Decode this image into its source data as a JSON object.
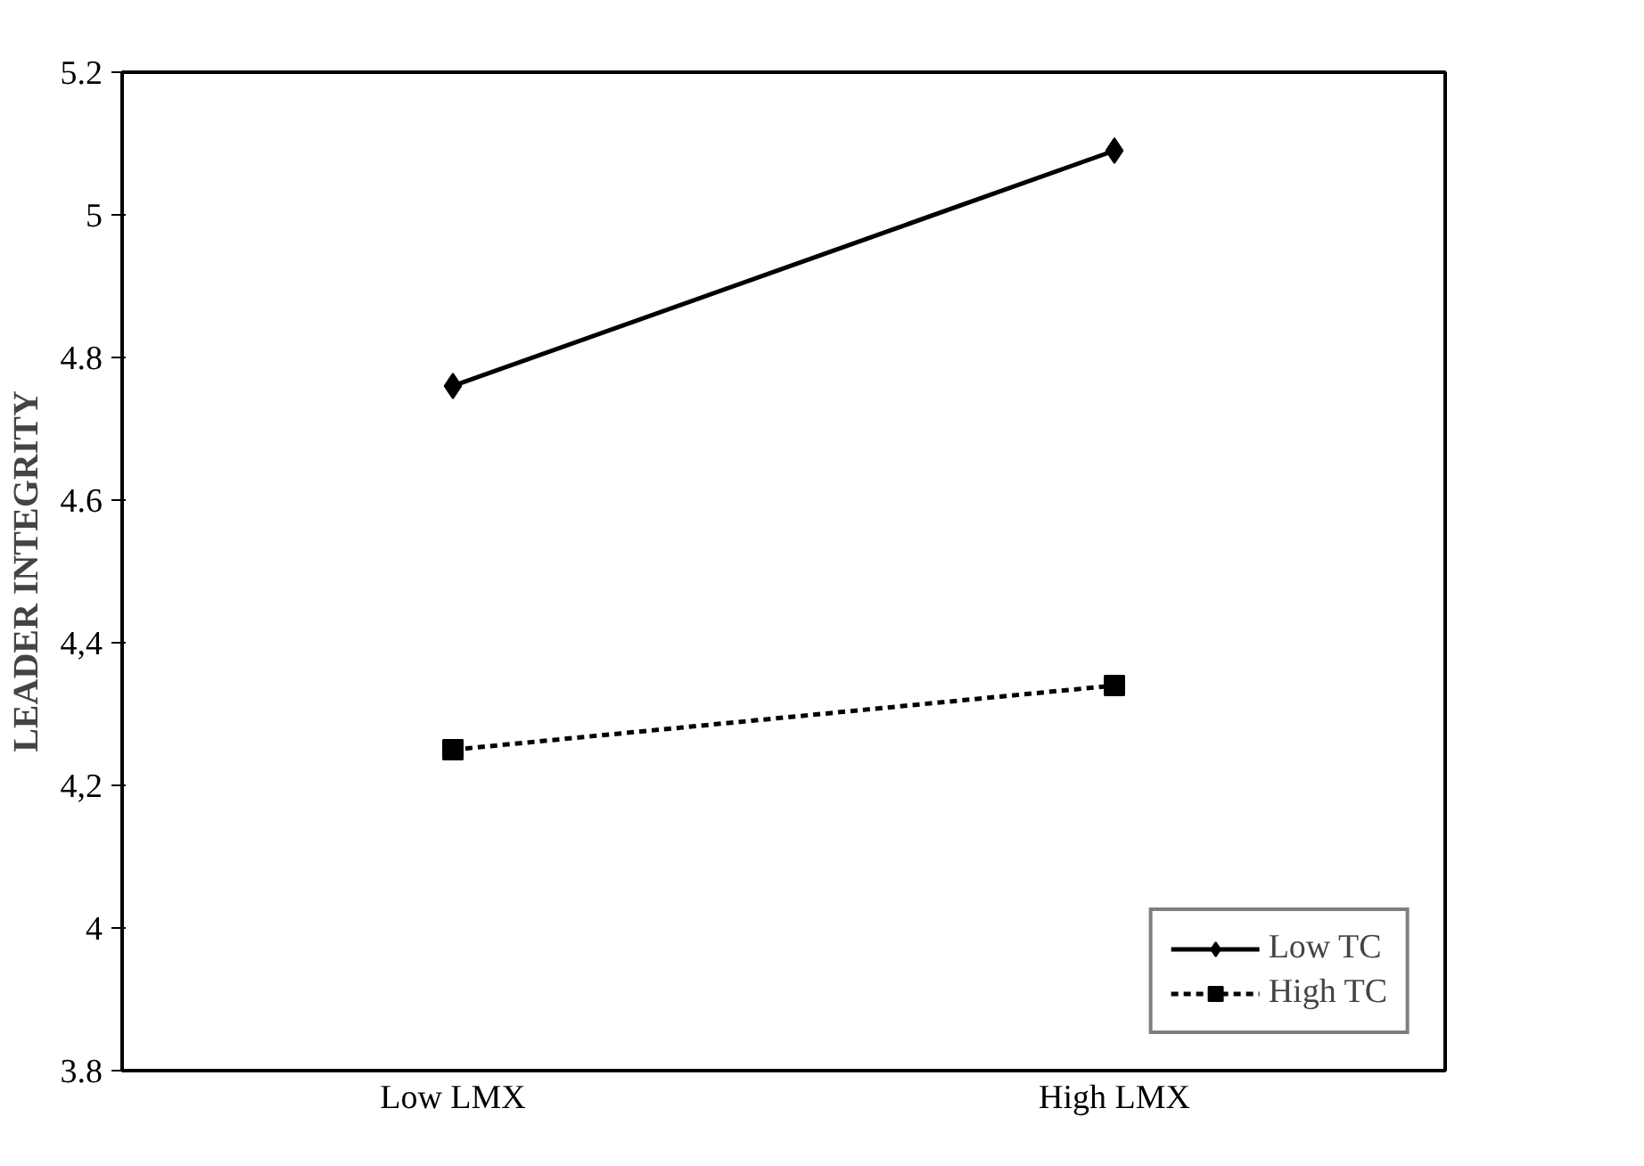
{
  "chart_data": {
    "type": "line",
    "ylabel": "LEADER INTEGRITY",
    "categories": [
      "Low LMX",
      "High LMX"
    ],
    "series": [
      {
        "name": "Low TC",
        "color": "#000000",
        "values": [
          4.76,
          5.09
        ],
        "marker": "diamond",
        "line_style": "solid"
      },
      {
        "name": "High TC",
        "color": "#000000",
        "values": [
          4.25,
          4.34
        ],
        "marker": "square",
        "line_style": "dashed"
      }
    ],
    "ylim": [
      3.8,
      5.2
    ],
    "yticks": [
      3.8,
      4,
      {
        "value": 4.2,
        "label": "4,2"
      },
      {
        "value": 4.4,
        "label": "4,4"
      },
      4.6,
      4.8,
      5,
      5.2
    ],
    "grid": false,
    "legend": "bottom right"
  }
}
